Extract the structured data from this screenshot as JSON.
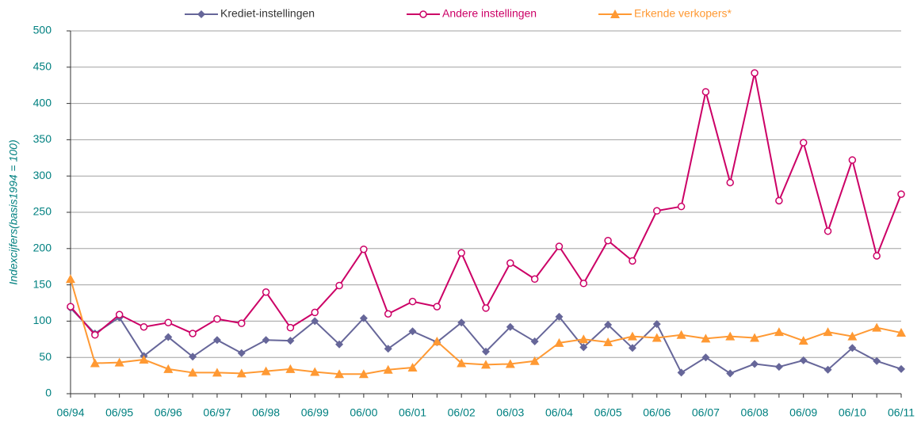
{
  "chart_data": {
    "type": "line",
    "ylabel": "Indexcijfers(basis1994 = 100)",
    "categories": [
      "06/94",
      null,
      "06/95",
      null,
      "06/96",
      null,
      "06/97",
      null,
      "06/98",
      null,
      "06/99",
      null,
      "06/00",
      null,
      "06/01",
      null,
      "06/02",
      null,
      "06/03",
      null,
      "06/04",
      null,
      "06/05",
      null,
      "06/06",
      null,
      "06/07",
      null,
      "06/08",
      null,
      "06/09",
      null,
      "06/10",
      null,
      "06/11"
    ],
    "series": [
      {
        "name": "Krediet-instellingen",
        "color": "#666699",
        "marker": "diamond",
        "values": [
          118,
          83,
          105,
          52,
          78,
          51,
          74,
          56,
          74,
          73,
          100,
          68,
          104,
          62,
          86,
          71,
          98,
          58,
          92,
          72,
          106,
          64,
          95,
          63,
          96,
          29,
          50,
          28,
          41,
          37,
          46,
          33,
          63,
          45,
          34
        ]
      },
      {
        "name": "Andere instellingen",
        "color": "#cc0066",
        "marker": "circle",
        "values": [
          120,
          81,
          109,
          92,
          98,
          83,
          103,
          97,
          140,
          91,
          112,
          149,
          199,
          110,
          127,
          120,
          194,
          118,
          180,
          158,
          203,
          152,
          211,
          183,
          252,
          258,
          416,
          291,
          442,
          266,
          346,
          224,
          322,
          190,
          275
        ]
      },
      {
        "name": "Erkende verkopers*",
        "color": "#ff9933",
        "marker": "triangle",
        "values": [
          158,
          42,
          43,
          47,
          34,
          29,
          29,
          28,
          31,
          34,
          30,
          27,
          27,
          33,
          36,
          72,
          42,
          40,
          41,
          45,
          70,
          75,
          71,
          79,
          77,
          81,
          76,
          79,
          77,
          85,
          73,
          85,
          79,
          91,
          84
        ]
      }
    ],
    "ylim": [
      0,
      500
    ],
    "yticks": [
      0,
      50,
      100,
      150,
      200,
      250,
      300,
      350,
      400,
      450,
      500
    ],
    "grid": true,
    "legend": "top"
  }
}
